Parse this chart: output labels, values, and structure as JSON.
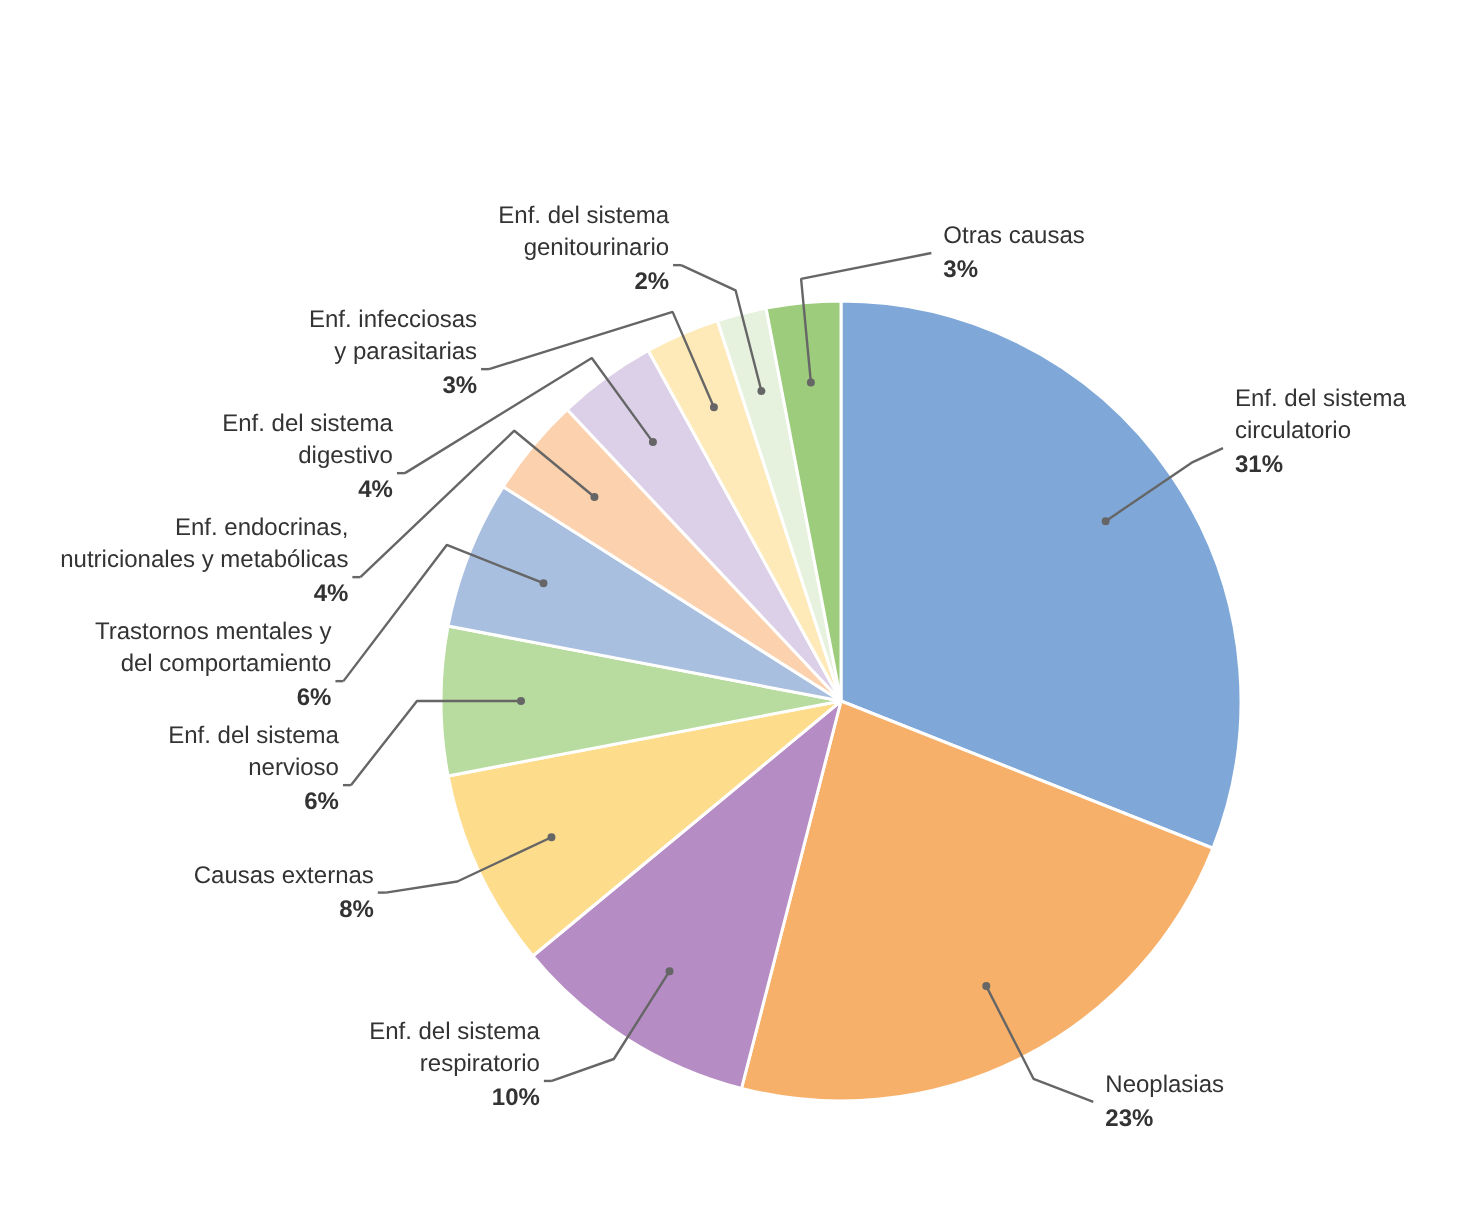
{
  "chart_data": {
    "type": "pie",
    "categories": [
      "Enf. del sistema\ncirculatorio",
      "Neoplasias",
      "Enf. del sistema\nrespiratorio",
      "Causas externas",
      "Enf. del sistema\nnervioso",
      "Trastornos mentales y\ndel comportamiento",
      "Enf. endocrinas,\nnutricionales y metabólicas",
      "Enf. del sistema\ndigestivo",
      "Enf. infecciosas\ny parasitarias",
      "Enf. del sistema\ngenitourinario",
      "Otras causas"
    ],
    "values": [
      31,
      23,
      10,
      8,
      6,
      6,
      4,
      4,
      3,
      2,
      3
    ],
    "colors": [
      "#7fa8d8",
      "#f7b06a",
      "#b58cc3",
      "#fddc8c",
      "#b8dba0",
      "#a9bfe0",
      "#fcd1ad",
      "#dcd0e8",
      "#feeab8",
      "#e6f2de",
      "#9ccc7c"
    ],
    "value_labels": [
      "31%",
      "23%",
      "10%",
      "8%",
      "6%",
      "6%",
      "4%",
      "4%",
      "3%",
      "2%",
      "3%"
    ]
  }
}
